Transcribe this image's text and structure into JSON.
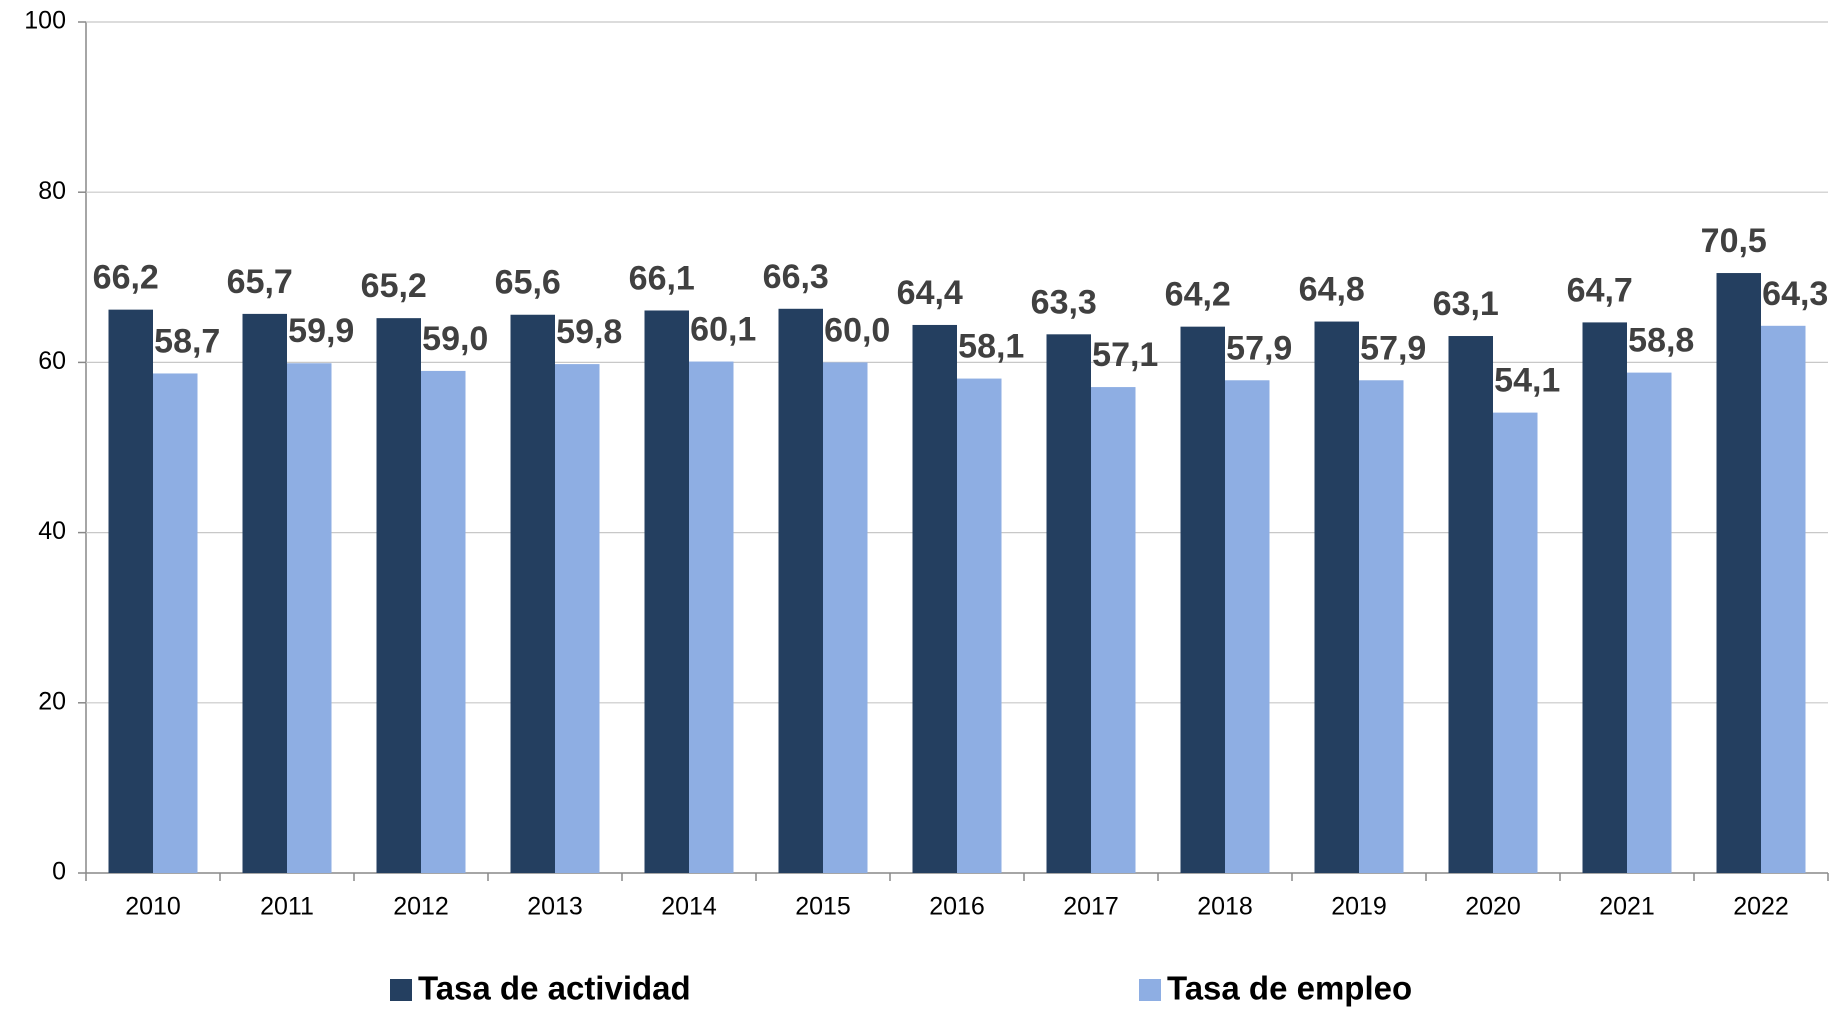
{
  "chart_data": {
    "type": "bar",
    "categories": [
      "2010",
      "2011",
      "2012",
      "2013",
      "2014",
      "2015",
      "2016",
      "2017",
      "2018",
      "2019",
      "2020",
      "2021",
      "2022"
    ],
    "series": [
      {
        "name": "Tasa de actividad",
        "color": "#243f60",
        "values": [
          66.2,
          65.7,
          65.2,
          65.6,
          66.1,
          66.3,
          64.4,
          63.3,
          64.2,
          64.8,
          63.1,
          64.7,
          70.5
        ],
        "value_labels": [
          "66,2",
          "65,7",
          "65,2",
          "65,6",
          "66,1",
          "66,3",
          "64,4",
          "63,3",
          "64,2",
          "64,8",
          "63,1",
          "64,7",
          "70,5"
        ]
      },
      {
        "name": "Tasa de empleo",
        "color": "#8eaee3",
        "values": [
          58.7,
          59.9,
          59.0,
          59.8,
          60.1,
          60.0,
          58.1,
          57.1,
          57.9,
          57.9,
          54.1,
          58.8,
          64.3
        ],
        "value_labels": [
          "58,7",
          "59,9",
          "59,0",
          "59,8",
          "60,1",
          "60,0",
          "58,1",
          "57,1",
          "57,9",
          "57,9",
          "54,1",
          "58,8",
          "64,3"
        ]
      }
    ],
    "ylim": [
      0,
      100
    ],
    "yticks": [
      0,
      20,
      40,
      60,
      80,
      100
    ],
    "grid": true,
    "legend": "bottom"
  }
}
